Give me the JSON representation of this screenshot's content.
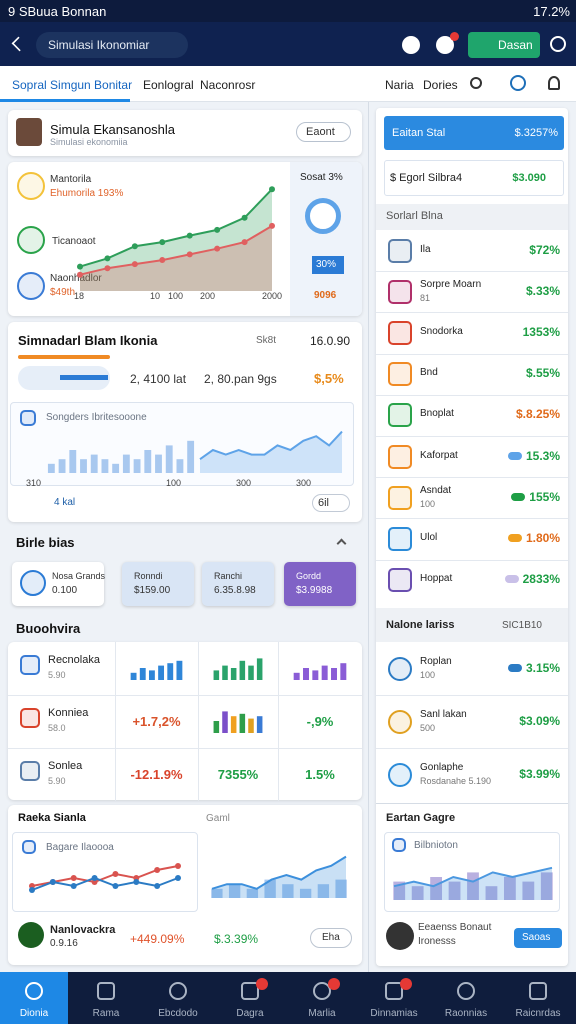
{
  "status_bar": {
    "left": "9 SBuua Bonnan",
    "right": "17.2%"
  },
  "app_bar": {
    "search": "Simulasi Ikonomiar",
    "button": "Dasan"
  },
  "tabs": {
    "items": [
      "Sopral Simgun Bonitar",
      "Eonlogral",
      "Naconrosr"
    ],
    "right": [
      "Naria",
      "Dories"
    ]
  },
  "profile": {
    "name": "Simula Ekansanoshla",
    "subtitle": "Simulasi ekonomiia",
    "dropdown": "Eaont"
  },
  "overview": {
    "labels": [
      {
        "title": "Mantorila",
        "value": "Ehumorila 193%"
      },
      {
        "title": "Ticanoaot"
      },
      {
        "title": "Naonhadlor",
        "value": "$49th"
      }
    ],
    "x_labels": [
      "18",
      "10",
      "100",
      "200",
      "2000"
    ],
    "chart": {
      "type": "area",
      "dots": true,
      "ylim": [
        0,
        14
      ],
      "series": [
        {
          "color": "#2e9e5a",
          "values": [
            3,
            4,
            5.5,
            6,
            6.8,
            7.5,
            9,
            12.5
          ]
        },
        {
          "color": "#e06060",
          "values": [
            2,
            2.8,
            3.3,
            3.8,
            4.5,
            5.2,
            6,
            8
          ]
        }
      ]
    },
    "side": {
      "title": "Sosat 3%",
      "tag": "30%",
      "value": "9096"
    }
  },
  "panel": {
    "title": "Simnadarl Blam Ikonia",
    "meta": "Sk8t",
    "value": "16.0.90",
    "stat1": "2, 4100 lat",
    "stat2": "2, 80.pan 9gs",
    "change": "$,5%",
    "chart_title": "Songders Ibritesooone",
    "x_labels": [
      "310",
      "100",
      "300",
      "300"
    ],
    "footer": "4 kal",
    "dropdown": "6il",
    "bars": {
      "type": "bar",
      "ylim": [
        0,
        10
      ],
      "series": [
        {
          "color": "#a8c8ef",
          "values": [
            2,
            3,
            5,
            3,
            4,
            3,
            2,
            4,
            3,
            5,
            4,
            6,
            3,
            7
          ]
        }
      ]
    },
    "area": {
      "type": "area",
      "ylim": [
        0,
        10
      ],
      "series": [
        {
          "color": "#5ea3e8",
          "values": [
            3,
            5,
            4,
            5,
            4,
            4,
            6,
            5,
            7,
            8,
            6,
            9
          ]
        }
      ]
    }
  },
  "section1": "Birle bias",
  "chips": [
    {
      "title": "Nosa Grands",
      "value": "0.100"
    },
    {
      "title": "Ronndi",
      "value": "$159.00"
    },
    {
      "title": "Ranchi",
      "value": "6.35.8.98"
    },
    {
      "title": "Gordd",
      "value": "$3.9988"
    }
  ],
  "section2": "Buoohvira",
  "table": [
    {
      "title": "Recnolaka",
      "sub": "5.90",
      "cells": [
        {
          "type": "bar",
          "ylim": [
            0,
            10
          ],
          "series": [
            {
              "color": "#2f86d8",
              "values": [
                3,
                5,
                4,
                6,
                7,
                8
              ]
            }
          ]
        },
        {
          "type": "bar",
          "ylim": [
            0,
            10
          ],
          "series": [
            {
              "color": "#2aa36b",
              "values": [
                4,
                6,
                5,
                8,
                6,
                9
              ]
            }
          ]
        },
        {
          "type": "bar",
          "ylim": [
            0,
            10
          ],
          "series": [
            {
              "color": "#8a5cd6",
              "values": [
                3,
                5,
                4,
                6,
                5,
                7
              ]
            }
          ]
        }
      ]
    },
    {
      "title": "Konniea",
      "sub": "58.0",
      "cells": [
        {
          "text": "+1.7,2%",
          "color": "#d9532b"
        },
        {
          "type": "bar",
          "ylim": [
            0,
            10
          ],
          "series": [
            {
              "colors": [
                "#2e9e4a",
                "#7b4fc9",
                "#f0a020",
                "#2e9e4a",
                "#e0a020",
                "#3a7bd5"
              ],
              "color": "#2e9e4a",
              "values": [
                5,
                9,
                7,
                8,
                6,
                7
              ]
            }
          ]
        },
        {
          "text": "-,9%",
          "color": "#1e9e45"
        }
      ]
    },
    {
      "title": "Sonlea",
      "sub": "5.90",
      "cells": [
        {
          "text": "-12.1.9%",
          "color": "#d9432b"
        },
        {
          "text": "7355%",
          "color": "#1e9e45"
        },
        {
          "text": "1.5%",
          "color": "#1e9e45"
        }
      ]
    }
  ],
  "bottom_card": {
    "title": "Raeka Sianla",
    "meta": "Gaml",
    "chart_title": "Bagare Ilaoooa",
    "chart1": {
      "type": "line",
      "dots": true,
      "ylim": [
        0,
        10
      ],
      "series": [
        {
          "color": "#d9534f",
          "values": [
            3,
            4,
            5,
            4,
            6,
            5,
            7,
            8
          ]
        },
        {
          "color": "#2b7bc4",
          "values": [
            2,
            4,
            3,
            5,
            3,
            4,
            3,
            5
          ]
        }
      ]
    },
    "chart2": {
      "ylim": [
        0,
        10
      ],
      "series": [
        {
          "type": "bar",
          "color": "#a8c8ef",
          "values": [
            2,
            3,
            2,
            4,
            3,
            2,
            3,
            4
          ]
        },
        {
          "type": "area",
          "color": "#3c8fdc",
          "values": [
            2,
            3,
            3,
            2,
            4,
            5,
            4,
            6,
            7,
            9
          ]
        }
      ]
    },
    "name": "Nanlovackra",
    "sub": "0.9.16",
    "v1": "+449.09%",
    "v2": "$.3.39%",
    "button": "Eha"
  },
  "side": {
    "header": {
      "title": "Eaitan Stal",
      "value": "$.3257%"
    },
    "row": {
      "label": "$ Egorl Silbra4",
      "value": "$3.090"
    },
    "section1": "Sorlarl Blna",
    "rows": [
      {
        "label": "Ila",
        "value": "$72%",
        "color": "#5a7da8",
        "value_color": "#1e9e45"
      },
      {
        "label": "Sorpre Moarn",
        "sub": "81",
        "value": "$.33%",
        "color": "#b0306a",
        "value_color": "#1e9e45"
      },
      {
        "label": "Snodorka",
        "value": "1353%",
        "color": "#d9432b",
        "value_color": "#1e9e45"
      },
      {
        "label": "Bnd",
        "value": "$.55%",
        "color": "#f08a24",
        "value_color": "#1e9e45"
      },
      {
        "label": "Bnoplat",
        "value": "$.8.25%",
        "color": "#2aa34a",
        "value_color": "#e06a1a"
      },
      {
        "label": "Kaforpat",
        "value": "15.3%",
        "color": "#f08a24",
        "value_color": "#1e9e45",
        "pill": "#5ea3e8"
      },
      {
        "label": "Asndat",
        "sub": "100",
        "value": "155%",
        "color": "#f0a020",
        "value_color": "#1e9e45",
        "pill": "#1e9e45"
      },
      {
        "label": "Ulol",
        "value": "1.80%",
        "color": "#2b8bd8",
        "value_color": "#e06a1a",
        "pill": "#f0a020"
      },
      {
        "label": "Hoppat",
        "value": "2833%",
        "color": "#6a4fb0",
        "value_color": "#1e9e45",
        "pill": "#c9c0e8"
      }
    ],
    "section2": {
      "title": "Nalone lariss",
      "meta": "SIC1B10"
    },
    "rows2": [
      {
        "label": "Roplan",
        "sub": "100",
        "value": "3.15%",
        "color": "#2b7bc4",
        "value_color": "#1e9e45",
        "pill": "#2b7bc4"
      },
      {
        "label": "Sanl lakan",
        "sub": "500",
        "value": "$3.09%",
        "color": "#e0a020",
        "value_color": "#1e9e45"
      },
      {
        "label": "Gonlaphe",
        "sub": "Rosdanahe 5.190",
        "value": "$3.99%",
        "color": "#2b8bd8",
        "value_color": "#1e9e45"
      }
    ],
    "card": {
      "title": "Eartan Gagre",
      "chart_title": "Bilbnioton",
      "chart": {
        "ylim": [
          0,
          10
        ],
        "series": [
          {
            "type": "bar",
            "color": "#b9b0e0",
            "values": [
              4,
              3,
              5,
              4,
              6,
              3,
              5,
              4,
              6
            ]
          },
          {
            "type": "area",
            "color": "#4b98e0",
            "values": [
              3,
              4,
              3,
              5,
              4,
              6,
              5,
              6,
              7
            ]
          }
        ]
      },
      "name": "Eeaenss Bonaut",
      "sub": "Ironesss",
      "button": "Saoas"
    }
  },
  "nav": [
    "Dionia",
    "Rama",
    "Ebcdodo",
    "Dagra",
    "Marlia",
    "Dinnamias",
    "Raonnias",
    "Raicnrdas"
  ]
}
